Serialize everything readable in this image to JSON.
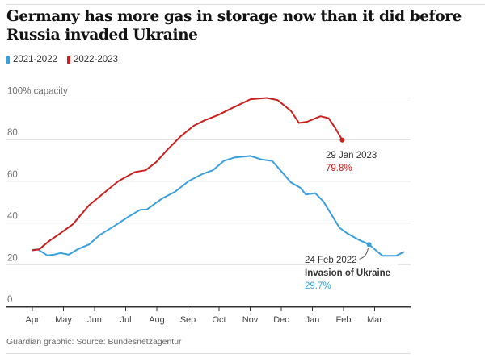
{
  "title": "Germany has more gas in storage now than it did before Russia invaded Ukraine",
  "source": "Guardian graphic: Source: Bundesnetzagentur",
  "chart_data": {
    "type": "line",
    "title": "Germany has more gas in storage now than it did before Russia invaded Ukraine",
    "ylabel": "100% capacity",
    "ylim": [
      0,
      100
    ],
    "yticks": [
      0,
      20,
      40,
      60,
      80,
      100
    ],
    "ytick_labels": [
      "0",
      "20",
      "40",
      "60",
      "80",
      "100% capacity"
    ],
    "x_unit": "months since 1 Apr",
    "xticks": [
      0,
      1,
      2,
      3,
      4,
      5,
      6,
      7,
      8,
      9,
      10,
      11
    ],
    "xtick_labels": [
      "Apr",
      "May",
      "Jun",
      "Jul",
      "Aug",
      "Sep",
      "Oct",
      "Nov",
      "Dec",
      "Jan",
      "Feb",
      "Mar"
    ],
    "grid": true,
    "legend_placement": "top-left",
    "series": [
      {
        "name": "2021-2022",
        "color": "#3a9fdd",
        "x": [
          0,
          0.17,
          0.48,
          0.69,
          0.91,
          1.17,
          1.47,
          1.82,
          2.16,
          2.68,
          3.12,
          3.46,
          3.68,
          4.16,
          4.59,
          5.02,
          5.45,
          5.8,
          6.15,
          6.49,
          7.01,
          7.36,
          7.71,
          8.31,
          8.61,
          8.79,
          9.09,
          9.35,
          9.87,
          10.13,
          10.48,
          10.82,
          11.25,
          11.52,
          11.69,
          11.95
        ],
        "y": [
          27.1,
          27.4,
          24.5,
          24.8,
          25.6,
          24.8,
          27.5,
          29.7,
          34.2,
          39,
          43.3,
          46.3,
          46.5,
          51.7,
          55,
          60.1,
          63.4,
          65.3,
          69.8,
          71.4,
          72.2,
          70.5,
          69.8,
          59.5,
          56.9,
          53.7,
          54.3,
          50.4,
          37.7,
          34.9,
          32,
          29.7,
          24.3,
          24.3,
          24.3,
          26.2
        ]
      },
      {
        "name": "2022-2023",
        "color": "#c8211e",
        "x": [
          0,
          0.22,
          0.56,
          0.82,
          1.3,
          1.82,
          2.08,
          2.42,
          2.77,
          3.29,
          3.64,
          3.98,
          4.33,
          4.76,
          5.19,
          5.54,
          5.97,
          6.41,
          7.01,
          7.53,
          7.88,
          8.31,
          8.57,
          8.83,
          9.26,
          9.52,
          9.74,
          9.96
        ],
        "y": [
          26.9,
          27.4,
          31.6,
          34.2,
          39.4,
          48.5,
          51.7,
          55.9,
          60.1,
          64.4,
          65.3,
          69.2,
          75,
          81.5,
          86.7,
          89.3,
          91.8,
          95.1,
          99.4,
          100,
          99,
          93.8,
          88,
          88.6,
          91.2,
          90.3,
          85.4,
          79.8
        ]
      }
    ],
    "annotations": [
      {
        "series": "2022-2023",
        "x": 9.96,
        "y": 79.8,
        "date": "29 Jan 2023",
        "value": "79.8%"
      },
      {
        "series": "2021-2022",
        "x": 10.82,
        "y": 29.7,
        "date": "24 Feb 2022",
        "label": "Invasion of Ukraine",
        "value": "29.7%"
      }
    ]
  }
}
